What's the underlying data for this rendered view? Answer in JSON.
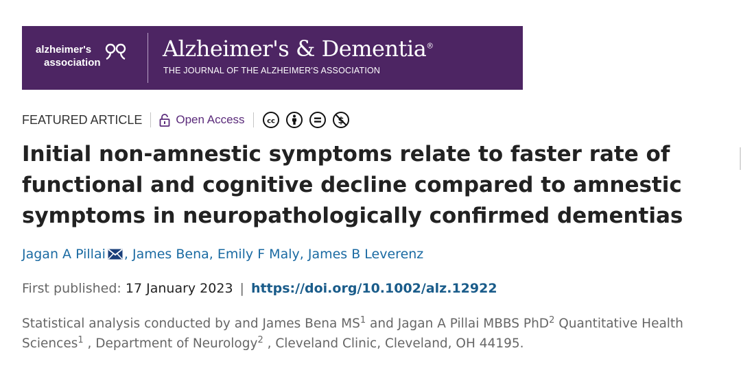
{
  "banner": {
    "org_line1": "alzheimer's",
    "org_line2": "association",
    "journal_title": "Alzheimer's & Dementia",
    "journal_reg": "®",
    "journal_subtitle": "THE JOURNAL OF THE ALZHEIMER'S ASSOCIATION",
    "background_color": "#4d2563"
  },
  "meta": {
    "article_type": "FEATURED ARTICLE",
    "open_access_label": "Open Access",
    "license_icons": [
      "cc-icon",
      "by-icon",
      "nd-icon",
      "nc-icon"
    ]
  },
  "article": {
    "title": "Initial non-amnestic symptoms relate to faster rate of functional and cognitive decline compared to amnestic symptoms in neuropathologically confirmed dementias",
    "authors": [
      "Jagan A Pillai",
      "James Bena",
      "Emily F Maly",
      "James B Leverenz"
    ],
    "first_published_label": "First published:",
    "first_published_date": "17 January 2023",
    "separator": "|",
    "doi": "https://doi.org/10.1002/alz.12922"
  },
  "affiliation": {
    "p1": "Statistical analysis conducted by and James Bena MS",
    "sup1": "1",
    "p2": " and Jagan A Pillai MBBS PhD",
    "sup2": "2",
    "p3": " Quantitative Health Sciences",
    "sup3": "1",
    "p4": " , Department of Neurology",
    "sup4": "2",
    "p5": " , Cleveland Clinic, Cleveland, OH 44195."
  },
  "colors": {
    "link": "#1a6aa2",
    "open_access": "#5a2a7a",
    "doi": "#1a5c8a"
  }
}
